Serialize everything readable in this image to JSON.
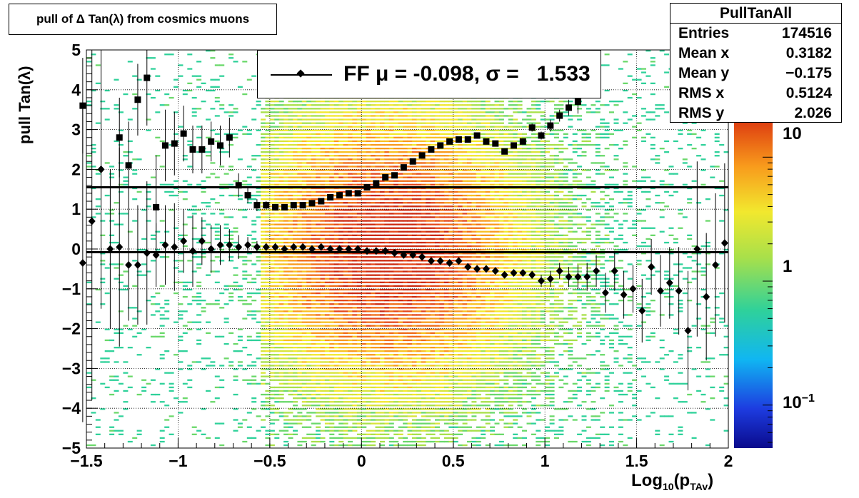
{
  "title": "pull of Δ Tan(λ) from cosmics muons",
  "legend": {
    "label": "FF μ = -0.098, σ =   1.533"
  },
  "stats": {
    "name": "PullTanAll",
    "rows": [
      {
        "key": "Entries",
        "value": "174516"
      },
      {
        "key": "Mean x",
        "value": "0.3182"
      },
      {
        "key": "Mean y",
        "value": "−0.175"
      },
      {
        "key": "RMS x",
        "value": "0.5124"
      },
      {
        "key": "RMS y",
        "value": "2.026"
      }
    ]
  },
  "axes": {
    "xlabel_main": "Log",
    "xlabel_sub1": "10",
    "xlabel_mid": "(p",
    "xlabel_sub2": "TAv",
    "xlabel_end": ")",
    "ylabel": "pull Tan(λ)",
    "xticks": [
      "−1.5",
      "−1",
      "−0.5",
      "0",
      "0.5",
      "1",
      "1.5",
      "2"
    ],
    "yticks": [
      "5",
      "4",
      "3",
      "2",
      "1",
      "0",
      "−1",
      "−2",
      "−3",
      "−4",
      "−5"
    ],
    "colorbar_labels": [
      {
        "text": "10",
        "sup": ""
      },
      {
        "text": "1",
        "sup": ""
      },
      {
        "text": "10",
        "sup": "−1"
      }
    ]
  },
  "chart_data": {
    "type": "heatmap",
    "xlim": [
      -1.5,
      2.0
    ],
    "ylim": [
      -5,
      5
    ],
    "z_log_scale": true,
    "grid": true,
    "colorbar_ticks": [
      10,
      1,
      0.1
    ],
    "lines": [
      {
        "y": 1.55
      },
      {
        "y": -0.08
      }
    ],
    "series": [
      {
        "marker": "square",
        "x": [
          -1.52,
          -1.47,
          -1.42,
          -1.37,
          -1.32,
          -1.27,
          -1.22,
          -1.17,
          -1.12,
          -1.07,
          -1.02,
          -0.97,
          -0.92,
          -0.87,
          -0.82,
          -0.77,
          -0.72,
          -0.67,
          -0.62,
          -0.57,
          -0.52,
          -0.47,
          -0.42,
          -0.37,
          -0.32,
          -0.27,
          -0.22,
          -0.17,
          -0.12,
          -0.07,
          -0.02,
          0.03,
          0.08,
          0.13,
          0.18,
          0.23,
          0.28,
          0.33,
          0.38,
          0.43,
          0.48,
          0.53,
          0.58,
          0.63,
          0.68,
          0.73,
          0.78,
          0.83,
          0.88,
          0.93,
          0.98,
          1.03,
          1.08,
          1.13,
          1.18
        ],
        "y": [
          3.6,
          null,
          null,
          null,
          2.8,
          2.1,
          3.75,
          4.3,
          1.05,
          2.6,
          2.65,
          2.9,
          2.5,
          2.5,
          2.7,
          2.6,
          2.8,
          1.6,
          1.35,
          1.1,
          1.1,
          1.05,
          1.05,
          1.1,
          1.1,
          1.15,
          1.2,
          1.3,
          1.35,
          1.4,
          1.4,
          1.55,
          1.65,
          1.8,
          1.85,
          2.05,
          2.2,
          2.35,
          2.5,
          2.6,
          2.7,
          2.75,
          2.75,
          2.85,
          2.7,
          2.65,
          2.45,
          2.6,
          2.7,
          3.05,
          2.85,
          3.1,
          3.35,
          3.55,
          3.7
        ],
        "err": [
          1.2,
          0,
          0,
          0,
          1.0,
          1.1,
          0.9,
          1.2,
          1.3,
          0.9,
          0.8,
          0.7,
          0.6,
          0.6,
          0.5,
          0.5,
          0.5,
          0.3,
          0.2,
          0.15,
          0.1,
          0.08,
          0.06,
          0.05,
          0.05,
          0.05,
          0.05,
          0.05,
          0.05,
          0.05,
          0.05,
          0.05,
          0.05,
          0.05,
          0.05,
          0.05,
          0.05,
          0.05,
          0.05,
          0.05,
          0.05,
          0.05,
          0.05,
          0.05,
          0.05,
          0.05,
          0.05,
          0.05,
          0.05,
          0.1,
          0.1,
          0.15,
          0.15,
          0.2,
          0.3
        ]
      },
      {
        "marker": "diamond",
        "x": [
          -1.52,
          -1.47,
          -1.42,
          -1.37,
          -1.32,
          -1.27,
          -1.22,
          -1.17,
          -1.12,
          -1.07,
          -1.02,
          -0.97,
          -0.92,
          -0.87,
          -0.82,
          -0.77,
          -0.72,
          -0.67,
          -0.62,
          -0.57,
          -0.52,
          -0.47,
          -0.42,
          -0.37,
          -0.32,
          -0.27,
          -0.22,
          -0.17,
          -0.12,
          -0.07,
          -0.02,
          0.03,
          0.08,
          0.13,
          0.18,
          0.23,
          0.28,
          0.33,
          0.38,
          0.43,
          0.48,
          0.53,
          0.58,
          0.63,
          0.68,
          0.73,
          0.78,
          0.83,
          0.88,
          0.93,
          0.98,
          1.03,
          1.08,
          1.13,
          1.18,
          1.23,
          1.28,
          1.33,
          1.38,
          1.43,
          1.48,
          1.53,
          1.58,
          1.63,
          1.68,
          1.73,
          1.78,
          1.83,
          1.88,
          1.93,
          1.98
        ],
        "y": [
          -0.35,
          0.7,
          2.0,
          0.0,
          0.05,
          -0.4,
          -0.4,
          -0.1,
          -0.15,
          0.1,
          0.05,
          0.2,
          -0.05,
          0.2,
          0.0,
          0.1,
          0.1,
          0.05,
          0.1,
          0.05,
          0.05,
          0.05,
          0.0,
          0.05,
          0.05,
          0.0,
          0.05,
          0.0,
          0.0,
          0.0,
          0.0,
          -0.05,
          -0.05,
          -0.05,
          -0.1,
          -0.15,
          -0.15,
          -0.2,
          -0.3,
          -0.3,
          -0.35,
          -0.3,
          -0.45,
          -0.5,
          -0.5,
          -0.55,
          -0.65,
          -0.6,
          -0.6,
          -0.65,
          -0.8,
          -0.75,
          -0.55,
          -0.7,
          -0.7,
          -0.7,
          -0.55,
          -1.1,
          -0.55,
          -1.15,
          -1.0,
          -1.55,
          -0.45,
          -1.05,
          -0.85,
          -1.05,
          -2.05,
          0.0,
          -1.2,
          -0.4,
          0.15
        ],
        "err": [
          4.0,
          4.5,
          3.5,
          2.0,
          2.5,
          1.4,
          1.5,
          1.8,
          0.8,
          1.0,
          1.1,
          0.8,
          0.9,
          0.6,
          0.6,
          0.5,
          0.4,
          0.3,
          0.2,
          0.15,
          0.1,
          0.1,
          0.08,
          0.06,
          0.05,
          0.05,
          0.05,
          0.05,
          0.05,
          0.05,
          0.05,
          0.05,
          0.05,
          0.05,
          0.05,
          0.05,
          0.05,
          0.05,
          0.05,
          0.05,
          0.05,
          0.05,
          0.05,
          0.05,
          0.05,
          0.05,
          0.05,
          0.08,
          0.08,
          0.1,
          0.15,
          0.2,
          0.2,
          0.25,
          0.3,
          0.35,
          0.4,
          0.5,
          0.5,
          0.6,
          0.6,
          0.8,
          0.7,
          0.9,
          0.9,
          1.1,
          1.5,
          2.2,
          1.6,
          1.8,
          2.0
        ]
      }
    ]
  }
}
